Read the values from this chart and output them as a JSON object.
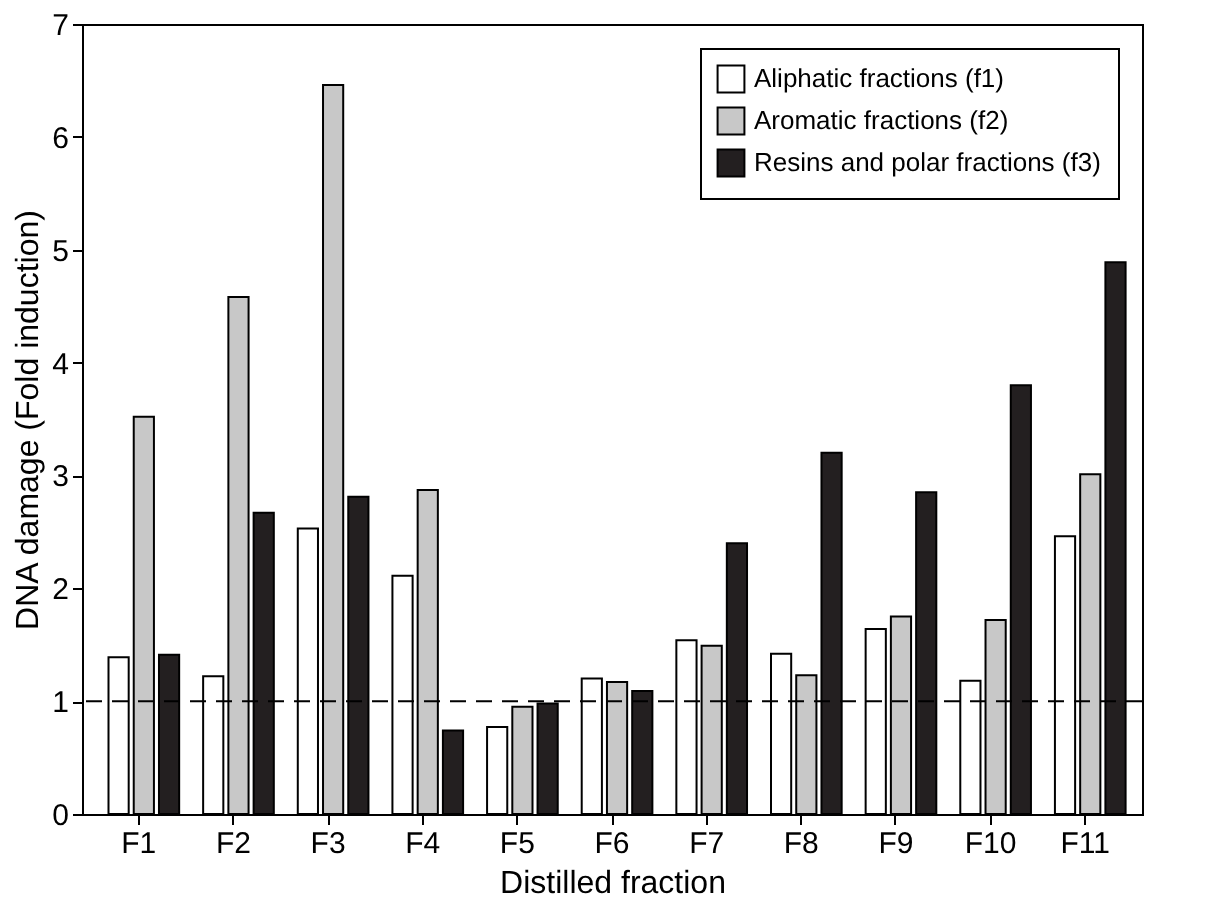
{
  "chart_data": {
    "type": "bar",
    "xlabel": "Distilled fraction",
    "ylabel": "DNA damage (Fold induction)",
    "categories": [
      "F1",
      "F2",
      "F3",
      "F4",
      "F5",
      "F6",
      "F7",
      "F8",
      "F9",
      "F10",
      "F11"
    ],
    "series": [
      {
        "name": "Aliphatic fractions (f1)",
        "color": "#ffffff",
        "values": [
          1.39,
          1.22,
          2.53,
          2.11,
          0.77,
          1.2,
          1.54,
          1.42,
          1.64,
          1.18,
          2.46
        ]
      },
      {
        "name": "Aromatic fractions (f2)",
        "color": "#c8c8c8",
        "values": [
          3.52,
          4.58,
          6.46,
          2.87,
          0.95,
          1.17,
          1.49,
          1.23,
          1.75,
          1.72,
          3.01
        ]
      },
      {
        "name": "Resins and polar fractions (f3)",
        "color": "#231f20",
        "values": [
          1.41,
          2.67,
          2.81,
          0.74,
          0.98,
          1.09,
          2.4,
          3.2,
          2.85,
          3.8,
          4.89
        ]
      }
    ],
    "ylim": [
      0,
      7
    ],
    "yticks": [
      0,
      1,
      2,
      3,
      4,
      5,
      6,
      7
    ],
    "ref_lines": [
      {
        "axis": "y",
        "value": 1,
        "line_style": "dashed"
      }
    ],
    "grid": false,
    "legend": "top right"
  }
}
